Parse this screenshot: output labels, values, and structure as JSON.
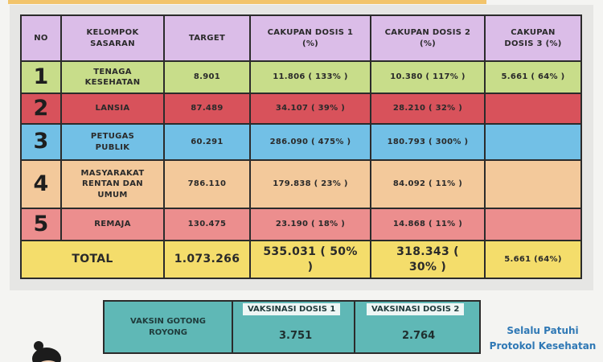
{
  "table": {
    "headers": [
      "NO",
      "KELOMPOK SASARAN",
      "TARGET",
      "CAKUPAN DOSIS 1 (%)",
      "CAKUPAN DOSIS 2 (%)",
      "CAKUPAN DOSIS 3 (%)"
    ],
    "rows": [
      [
        "1",
        "TENAGA KESEHATAN",
        "8.901",
        "11.806 ( 133% )",
        "10.380 ( 117% )",
        "5.661 ( 64% )"
      ],
      [
        "2",
        "LANSIA",
        "87.489",
        "34.107 ( 39% )",
        "28.210 ( 32% )"
      ],
      [
        "3",
        "PETUGAS PUBLIK",
        "60.291",
        "286.090 ( 475% )",
        "180.793 ( 300% )"
      ],
      [
        "4",
        "MASYARAKAT RENTAN DAN UMUM",
        "786.110",
        "179.838 ( 23% )",
        "84.092 ( 11% )"
      ],
      [
        "5",
        "REMAJA",
        "130.475",
        "23.190 ( 18% )",
        "14.868 ( 11% )"
      ]
    ],
    "total": {
      "label": "TOTAL",
      "target": "1.073.266",
      "dose1": "535.031 ( 50% )",
      "dose2": "318.343 ( 30% )",
      "dose3": "5.661 (64%)"
    }
  },
  "gotong_royong": {
    "label": "VAKSIN GOTONG ROYONG",
    "dose1_label": "VAKSINASI DOSIS 1",
    "dose1_value": "3.751",
    "dose2_label": "VAKSINASI DOSIS 2",
    "dose2_value": "2.764"
  },
  "footer": {
    "message": "Selalu Patuhi Protokol Kesehatan"
  }
}
